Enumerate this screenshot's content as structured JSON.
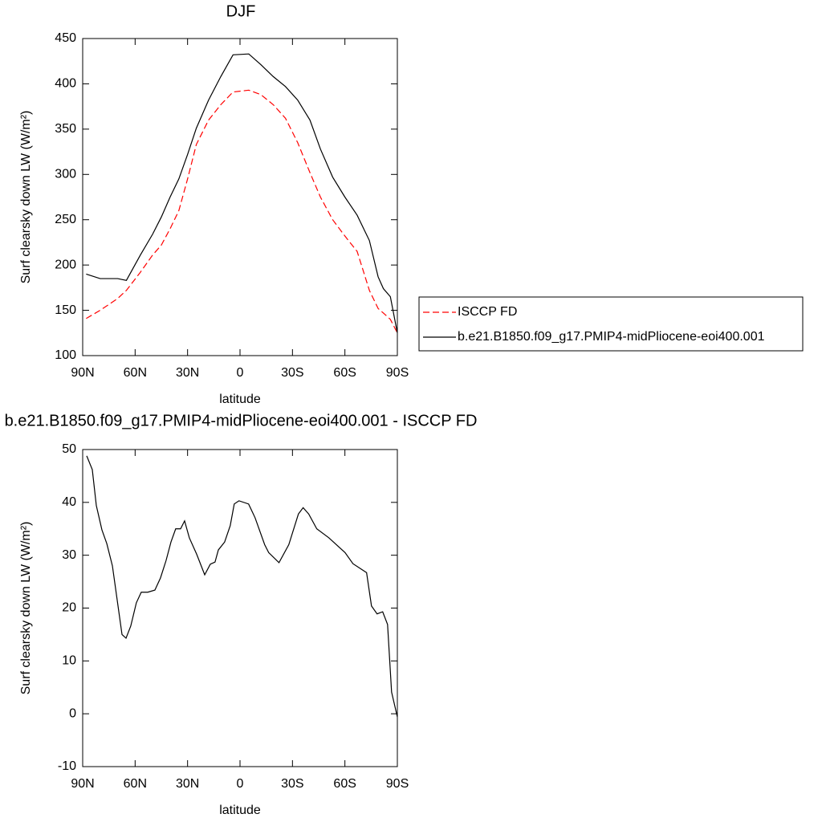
{
  "chart_data": [
    {
      "type": "line",
      "title": "DJF",
      "ylabel": "Surf clearsky down LW (W/m²)",
      "xlabel": "latitude",
      "x": [
        88,
        80,
        70,
        65,
        57,
        50,
        45,
        40,
        35,
        30,
        25,
        18,
        11,
        4,
        -5,
        -12,
        -19,
        -26,
        -33,
        -40,
        -46,
        -53,
        -60,
        -67,
        -74,
        -79,
        -82,
        -86,
        -90
      ],
      "series": [
        {
          "name": "ISCCP FD",
          "color": "#ff0000",
          "dash": "dashed",
          "values": [
            141,
            150,
            163,
            172,
            192,
            211,
            222,
            240,
            260,
            295,
            333,
            360,
            377,
            391,
            393,
            388,
            377,
            362,
            335,
            302,
            275,
            250,
            232,
            215,
            172,
            152,
            147,
            140,
            125
          ]
        },
        {
          "name": "b.e21.B1850.f09_g17.PMIP4-midPliocene-eoi400.001",
          "color": "#000000",
          "dash": "solid",
          "values": [
            190,
            185,
            185,
            183,
            211,
            234,
            253,
            275,
            295,
            322,
            351,
            382,
            408,
            432,
            433,
            421,
            408,
            397,
            382,
            360,
            328,
            297,
            275,
            255,
            227,
            187,
            174,
            165,
            125
          ]
        }
      ],
      "xlim": [
        90,
        -90
      ],
      "xticks": [
        {
          "value": 90,
          "label": "90N"
        },
        {
          "value": 60,
          "label": "60N"
        },
        {
          "value": 30,
          "label": "30N"
        },
        0,
        {
          "value": -30,
          "label": "30S"
        },
        {
          "value": -60,
          "label": "60S"
        },
        {
          "value": -90,
          "label": "90S"
        }
      ],
      "ylim": [
        100,
        450
      ],
      "yticks": [
        100,
        150,
        200,
        250,
        300,
        350,
        400,
        450
      ],
      "legend": "right"
    },
    {
      "type": "line",
      "title": "b.e21.B1850.f09_g17.PMIP4-midPliocene-eoi400.001 - ISCCP FD",
      "ylabel": "Surf clearsky down LW (W/m²)",
      "xlabel": "latitude",
      "x": [
        87.7,
        84.5,
        82.2,
        79,
        76.2,
        73,
        67.5,
        65.2,
        62.5,
        59.3,
        56.5,
        52.8,
        48.7,
        45.5,
        42.3,
        39.5,
        36.8,
        34,
        31.7,
        29,
        24.8,
        20.2,
        17,
        14.3,
        12.4,
        8.8,
        5.6,
        3.3,
        0.6,
        -4.9,
        -8.6,
        -14.1,
        -16.4,
        -22.3,
        -27.9,
        -33.4,
        -36.1,
        -39.3,
        -43.9,
        -50.8,
        -60.1,
        -64.6,
        -72.4,
        -75.2,
        -78.4,
        -81.6,
        -84.4,
        -86.7,
        -90
      ],
      "series": [
        {
          "name": null,
          "color": "#000000",
          "dash": "solid",
          "values": [
            48.8,
            46.2,
            39.4,
            34.8,
            32.2,
            28,
            15,
            14.3,
            16.6,
            21,
            23,
            23,
            23.4,
            25.7,
            29,
            32.5,
            35,
            35,
            36.5,
            33.3,
            30.2,
            26.3,
            28.3,
            28.7,
            31,
            32.5,
            35.6,
            39.7,
            40.3,
            39.7,
            37.1,
            32,
            30.5,
            28.6,
            32,
            37.8,
            39,
            37.8,
            35,
            33.3,
            30.5,
            28.4,
            26.7,
            20.4,
            18.9,
            19.3,
            16.9,
            4.1,
            -0.6
          ]
        }
      ],
      "xlim": [
        90,
        -90
      ],
      "xticks": [
        {
          "value": 90,
          "label": "90N"
        },
        {
          "value": 60,
          "label": "60N"
        },
        {
          "value": 30,
          "label": "30N"
        },
        0,
        {
          "value": -30,
          "label": "30S"
        },
        {
          "value": -60,
          "label": "60S"
        },
        {
          "value": -90,
          "label": "90S"
        }
      ],
      "ylim": [
        -10,
        50
      ],
      "yticks": [
        -10,
        0,
        10,
        20,
        30,
        40,
        50
      ]
    }
  ]
}
